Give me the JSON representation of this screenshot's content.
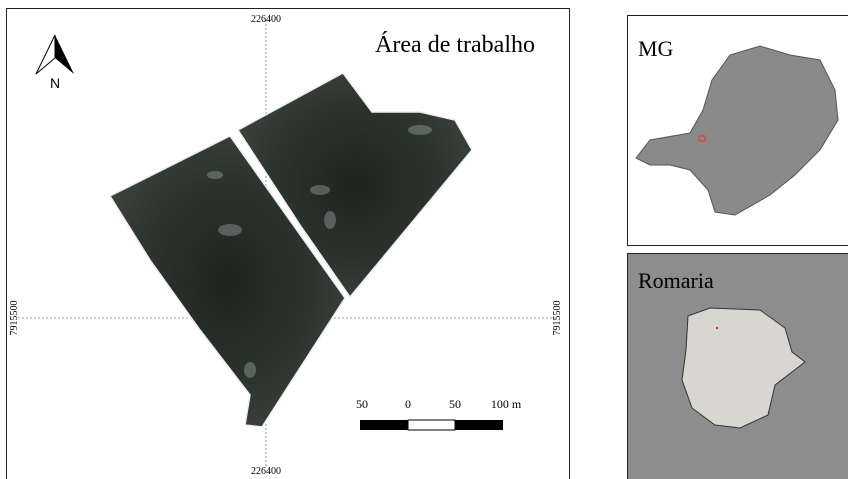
{
  "map": {
    "title": "Área de trabalho",
    "north": "N",
    "grid_labels": {
      "top": "226400",
      "bottom": "226400",
      "left": "7915500",
      "right": "7915500"
    },
    "scale_labels": [
      "50",
      "0",
      "50",
      "100 m"
    ]
  },
  "inset_state": {
    "label": "MG"
  },
  "inset_municipality": {
    "label": "Romaria"
  }
}
